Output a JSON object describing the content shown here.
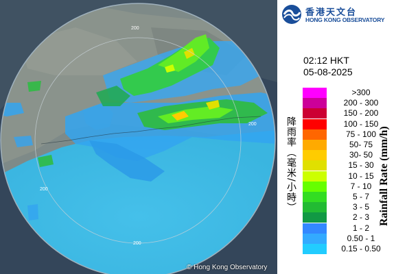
{
  "observation": {
    "time": "02:12 HKT",
    "date": "05-08-2025"
  },
  "logo": {
    "name_cn": "香港天文台",
    "name_en": "HONG KONG OBSERVATORY"
  },
  "legend": {
    "unit_cn": "降雨率（毫米/小時）",
    "unit_en": "Rainfall Rate (mm/h)",
    "entries": [
      {
        "label": ">300",
        "color": "#ff00ff"
      },
      {
        "label": "200 - 300",
        "color": "#cc0099"
      },
      {
        "label": "150 - 200",
        "color": "#cc0033"
      },
      {
        "label": "100 - 150",
        "color": "#ff0000"
      },
      {
        "label": "75 - 100",
        "color": "#ff6600"
      },
      {
        "label": "50- 75",
        "color": "#ffaa00"
      },
      {
        "label": "30- 50",
        "color": "#ffcc00"
      },
      {
        "label": "15 - 30",
        "color": "#e0e000"
      },
      {
        "label": "10 - 15",
        "color": "#ccff00"
      },
      {
        "label": "7 - 10",
        "color": "#66ff00"
      },
      {
        "label": "5 - 7",
        "color": "#33dd22"
      },
      {
        "label": "3 - 5",
        "color": "#22bb33"
      },
      {
        "label": "2 - 3",
        "color": "#119944"
      },
      {
        "label": "1 - 2",
        "color": "#3388ff"
      },
      {
        "label": "0.50 - 1",
        "color": "#33aaff"
      },
      {
        "label": "0.15 - 0.50",
        "color": "#22ccff"
      }
    ]
  },
  "map": {
    "range_labels": [
      "200",
      "200",
      "200",
      "200"
    ],
    "copyright": "© Hong Kong Observatory"
  }
}
